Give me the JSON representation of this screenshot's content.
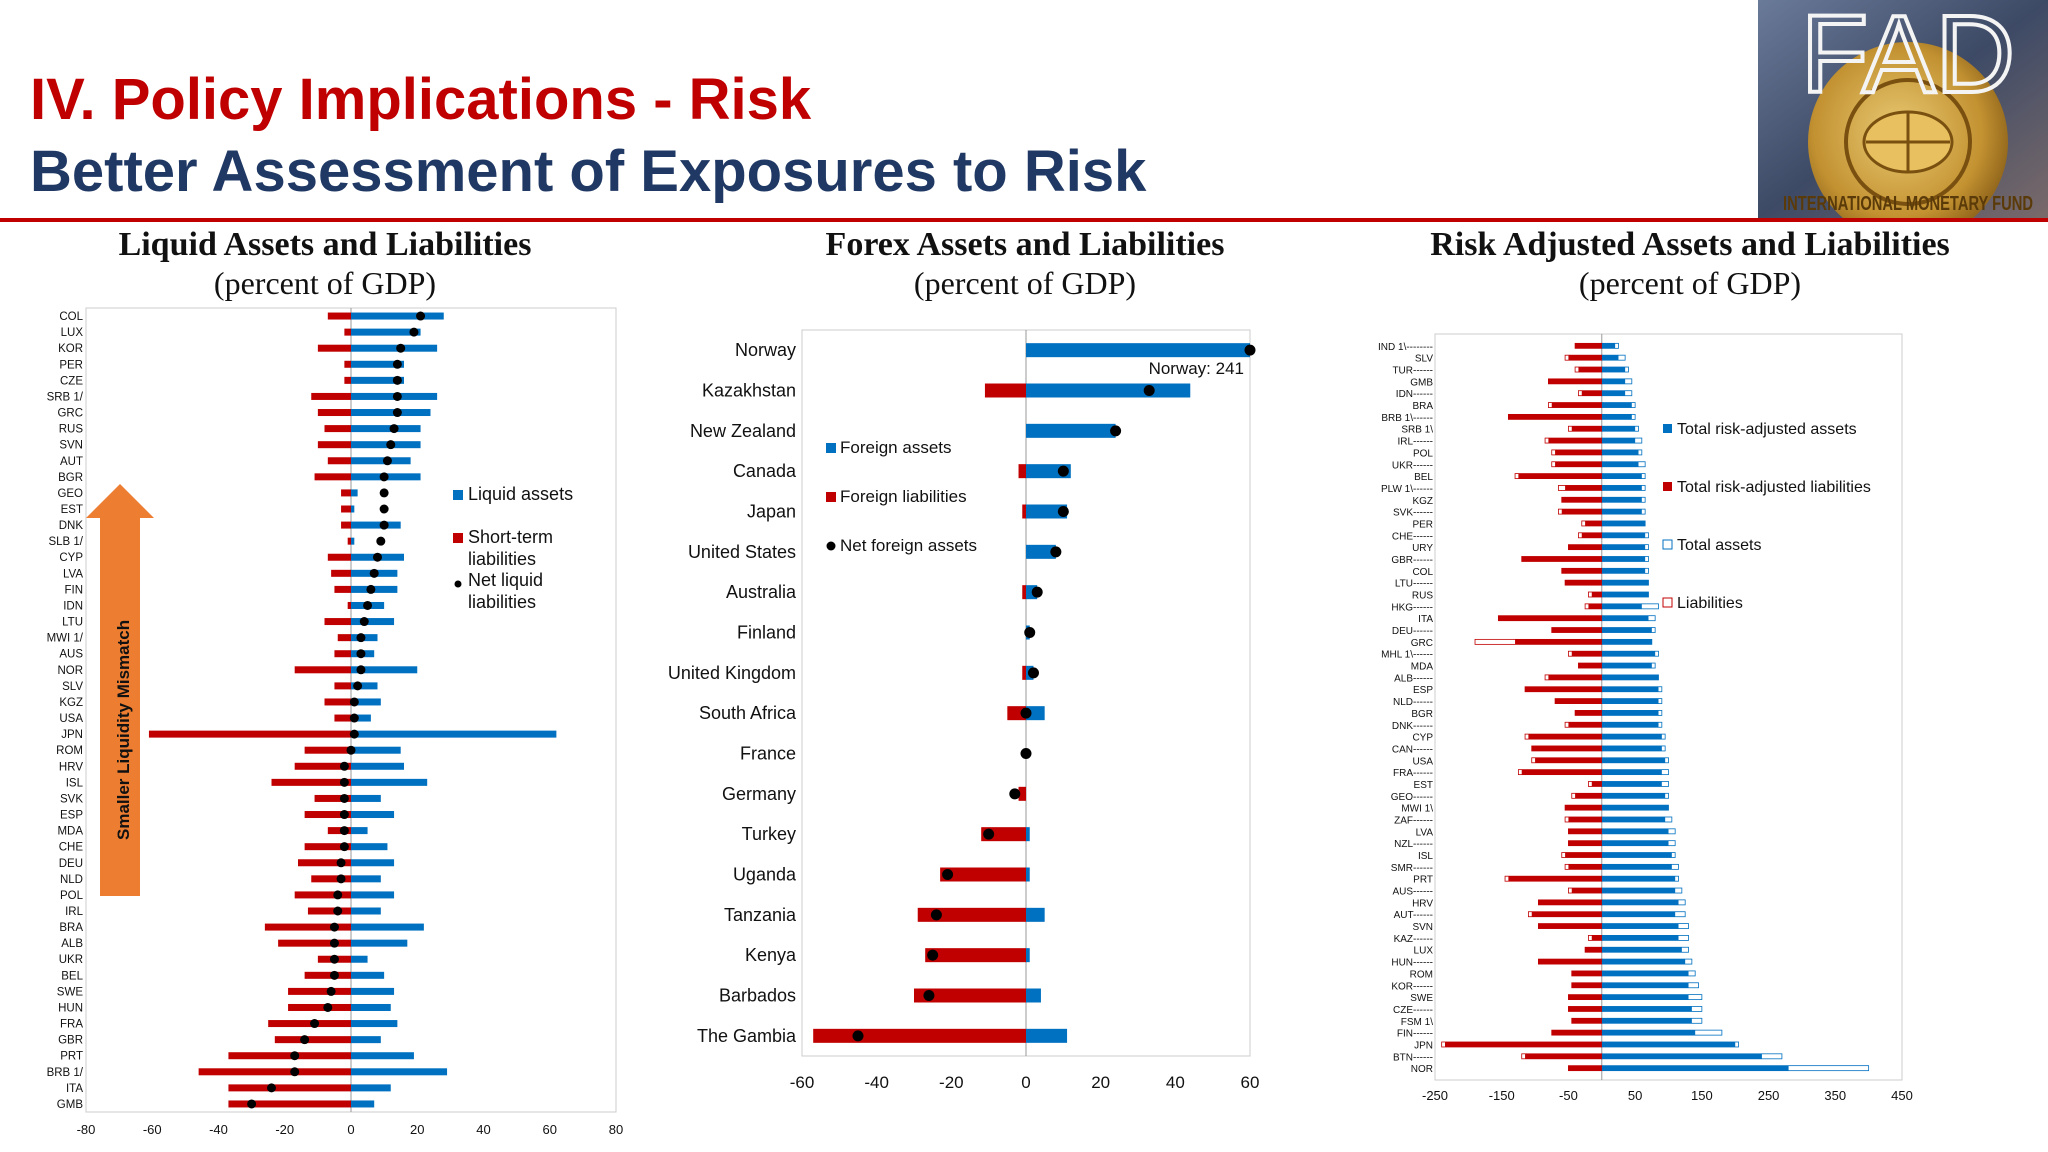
{
  "header": {
    "title": "IV. Policy Implications - Risk",
    "subtitle": "Better Assessment of Exposures to Risk",
    "logo_text": "FAD",
    "logo_seal_text": "INTERNATIONAL MONETARY FUND"
  },
  "colors": {
    "red": "#c00000",
    "blue": "#0070c0",
    "navy": "#1f3864",
    "arrow": "#ed7d31"
  },
  "chart_data": [
    {
      "type": "bar",
      "title": "Liquid Assets and Liabilities",
      "subtitle": "(percent of GDP)",
      "xlim": [
        -80,
        80
      ],
      "xticks": [
        -80,
        -60,
        -40,
        -20,
        0,
        20,
        40,
        60,
        80
      ],
      "legend": [
        "Liquid assets",
        "Short-term liabilities",
        "Net liquid liabilities"
      ],
      "legend_position": "right",
      "arrow_label": "Smaller Liquidity Mismatch",
      "categories": [
        "COL",
        "LUX",
        "KOR",
        "PER",
        "CZE",
        "SRB 1/",
        "GRC",
        "RUS",
        "SVN",
        "AUT",
        "BGR",
        "GEO",
        "EST",
        "DNK",
        "SLB 1/",
        "CYP",
        "LVA",
        "FIN",
        "IDN",
        "LTU",
        "MWI 1/",
        "AUS",
        "NOR",
        "SLV",
        "KGZ",
        "USA",
        "JPN",
        "ROM",
        "HRV",
        "ISL",
        "SVK",
        "ESP",
        "MDA",
        "CHE",
        "DEU",
        "NLD",
        "POL",
        "IRL",
        "BRA",
        "ALB",
        "UKR",
        "BEL",
        "SWE",
        "HUN",
        "FRA",
        "GBR",
        "PRT",
        "BRB 1/",
        "ITA",
        "GMB"
      ],
      "series": [
        {
          "name": "Liquid assets",
          "values": [
            28,
            21,
            26,
            16,
            16,
            26,
            24,
            21,
            21,
            18,
            21,
            2,
            1,
            15,
            1,
            16,
            14,
            14,
            10,
            13,
            8,
            7,
            20,
            8,
            9,
            6,
            62,
            15,
            16,
            23,
            9,
            13,
            5,
            11,
            13,
            9,
            13,
            9,
            22,
            17,
            5,
            10,
            13,
            12,
            14,
            9,
            19,
            29,
            12,
            7
          ]
        },
        {
          "name": "Short-term liabilities",
          "values": [
            -7,
            -2,
            -10,
            -2,
            -2,
            -12,
            -10,
            -8,
            -10,
            -7,
            -11,
            -3,
            -3,
            -3,
            -1,
            -7,
            -6,
            -5,
            -1,
            -8,
            -4,
            -5,
            -17,
            -5,
            -8,
            -5,
            -61,
            -14,
            -17,
            -24,
            -11,
            -14,
            -7,
            -14,
            -16,
            -12,
            -17,
            -13,
            -26,
            -22,
            -10,
            -14,
            -19,
            -19,
            -25,
            -23,
            -37,
            -46,
            -37,
            -37
          ]
        },
        {
          "name": "Net liquid liabilities",
          "values": [
            21,
            19,
            15,
            14,
            14,
            14,
            14,
            13,
            12,
            11,
            10,
            10,
            10,
            10,
            9,
            8,
            7,
            6,
            5,
            4,
            3,
            3,
            3,
            2,
            1,
            1,
            1,
            0,
            -2,
            -2,
            -2,
            -2,
            -2,
            -2,
            -3,
            -3,
            -4,
            -4,
            -5,
            -5,
            -5,
            -5,
            -6,
            -7,
            -11,
            -14,
            -17,
            -17,
            -24,
            -30
          ]
        }
      ]
    },
    {
      "type": "bar",
      "title": "Forex Assets and Liabilities",
      "subtitle": "(percent of GDP)",
      "xlim": [
        -60,
        60
      ],
      "xticks": [
        -60,
        -40,
        -20,
        0,
        20,
        40,
        60
      ],
      "legend": [
        "Foreign assets",
        "Foreign liabilities",
        "Net foreign assets"
      ],
      "legend_position": "left",
      "annotation": "Norway: 241",
      "categories": [
        "Norway",
        "Kazakhstan",
        "New Zealand",
        "Canada",
        "Japan",
        "United States",
        "Australia",
        "Finland",
        "United Kingdom",
        "South Africa",
        "France",
        "Germany",
        "Turkey",
        "Uganda",
        "Tanzania",
        "Kenya",
        "Barbados",
        "The Gambia"
      ],
      "series": [
        {
          "name": "Foreign assets",
          "values": [
            60,
            44,
            24,
            12,
            11,
            8,
            3,
            1,
            2,
            5,
            0,
            0,
            1,
            1,
            5,
            1,
            4,
            11
          ]
        },
        {
          "name": "Foreign liabilities",
          "values": [
            0,
            -11,
            0,
            -2,
            -1,
            0,
            -1,
            0,
            -1,
            -5,
            0,
            -2,
            -12,
            -23,
            -29,
            -27,
            -30,
            -57
          ]
        },
        {
          "name": "Net foreign assets",
          "values": [
            60,
            33,
            24,
            10,
            10,
            8,
            3,
            1,
            2,
            0,
            0,
            -3,
            -10,
            -21,
            -24,
            -25,
            -26,
            -45
          ]
        }
      ]
    },
    {
      "type": "bar",
      "title": "Risk Adjusted Assets and Liabilities",
      "subtitle": "(percent of GDP)",
      "xlim": [
        -250,
        450
      ],
      "xticks": [
        -250,
        -150,
        -50,
        50,
        150,
        250,
        350,
        450
      ],
      "legend": [
        "Total risk-adjusted assets",
        "Total risk-adjusted liabilities",
        "Total assets",
        "Liabilities"
      ],
      "legend_position": "right",
      "categories": [
        "IND 1\\--------",
        "SLV",
        "TUR------",
        "GMB",
        "IDN------",
        "BRA",
        "BRB 1\\------",
        "SRB 1\\",
        "IRL------",
        "POL",
        "UKR------",
        "BEL",
        "PLW 1\\------",
        "KGZ",
        "SVK------",
        "PER",
        "CHE------",
        "URY",
        "GBR------",
        "COL",
        "LTU------",
        "RUS",
        "HKG------",
        "ITA",
        "DEU------",
        "GRC",
        "MHL 1\\------",
        "MDA",
        "ALB------",
        "ESP",
        "NLD------",
        "BGR",
        "DNK------",
        "CYP",
        "CAN------",
        "USA",
        "FRA------",
        "EST",
        "GEO------",
        "MWI 1\\",
        "ZAF------",
        "LVA",
        "NZL------",
        "ISL",
        "SMR------",
        "PRT",
        "AUS------",
        "HRV",
        "AUT------",
        "SVN",
        "KAZ------",
        "LUX",
        "HUN------",
        "ROM",
        "KOR------",
        "SWE",
        "CZE------",
        "FSM 1\\",
        "FIN------",
        "JPN",
        "BTN------",
        "NOR"
      ],
      "series": [
        {
          "name": "Total risk-adjusted assets",
          "values": [
            20,
            25,
            35,
            35,
            35,
            45,
            45,
            50,
            50,
            55,
            55,
            60,
            60,
            60,
            60,
            65,
            65,
            65,
            65,
            65,
            70,
            70,
            60,
            70,
            75,
            75,
            80,
            75,
            85,
            85,
            85,
            85,
            85,
            90,
            90,
            95,
            90,
            90,
            95,
            100,
            95,
            100,
            100,
            105,
            105,
            110,
            110,
            115,
            110,
            115,
            115,
            120,
            125,
            130,
            130,
            130,
            135,
            135,
            140,
            200,
            240,
            280
          ]
        },
        {
          "name": "Total risk-adjusted liabilities",
          "values": [
            -40,
            -50,
            -35,
            -80,
            -30,
            -75,
            -140,
            -45,
            -80,
            -70,
            -70,
            -125,
            -55,
            -60,
            -60,
            -25,
            -30,
            -50,
            -120,
            -60,
            -55,
            -15,
            -20,
            -155,
            -75,
            -130,
            -45,
            -35,
            -80,
            -115,
            -70,
            -40,
            -50,
            -110,
            -105,
            -100,
            -120,
            -15,
            -40,
            -55,
            -50,
            -50,
            -50,
            -55,
            -50,
            -140,
            -45,
            -95,
            -105,
            -95,
            -15,
            -25,
            -95,
            -45,
            -45,
            -50,
            -50,
            -45,
            -75,
            -235,
            -115,
            -50
          ]
        },
        {
          "name": "Total assets",
          "values": [
            25,
            35,
            40,
            45,
            45,
            50,
            50,
            55,
            60,
            60,
            65,
            65,
            65,
            65,
            65,
            65,
            70,
            70,
            70,
            70,
            70,
            70,
            85,
            80,
            80,
            75,
            85,
            80,
            85,
            90,
            90,
            90,
            90,
            95,
            95,
            100,
            100,
            100,
            100,
            100,
            105,
            110,
            110,
            110,
            115,
            115,
            120,
            125,
            125,
            130,
            130,
            130,
            135,
            140,
            145,
            150,
            150,
            150,
            180,
            205,
            270,
            400
          ]
        },
        {
          "name": "Liabilities",
          "values": [
            -40,
            -55,
            -40,
            -80,
            -35,
            -80,
            -140,
            -50,
            -85,
            -75,
            -75,
            -130,
            -65,
            -60,
            -65,
            -30,
            -35,
            -50,
            -120,
            -60,
            -55,
            -20,
            -25,
            -155,
            -75,
            -190,
            -50,
            -35,
            -85,
            -115,
            -70,
            -40,
            -55,
            -115,
            -105,
            -105,
            -125,
            -20,
            -45,
            -55,
            -55,
            -50,
            -50,
            -60,
            -55,
            -145,
            -50,
            -95,
            -110,
            -95,
            -20,
            -25,
            -95,
            -45,
            -45,
            -50,
            -50,
            -45,
            -75,
            -240,
            -120,
            -50
          ]
        }
      ]
    }
  ]
}
